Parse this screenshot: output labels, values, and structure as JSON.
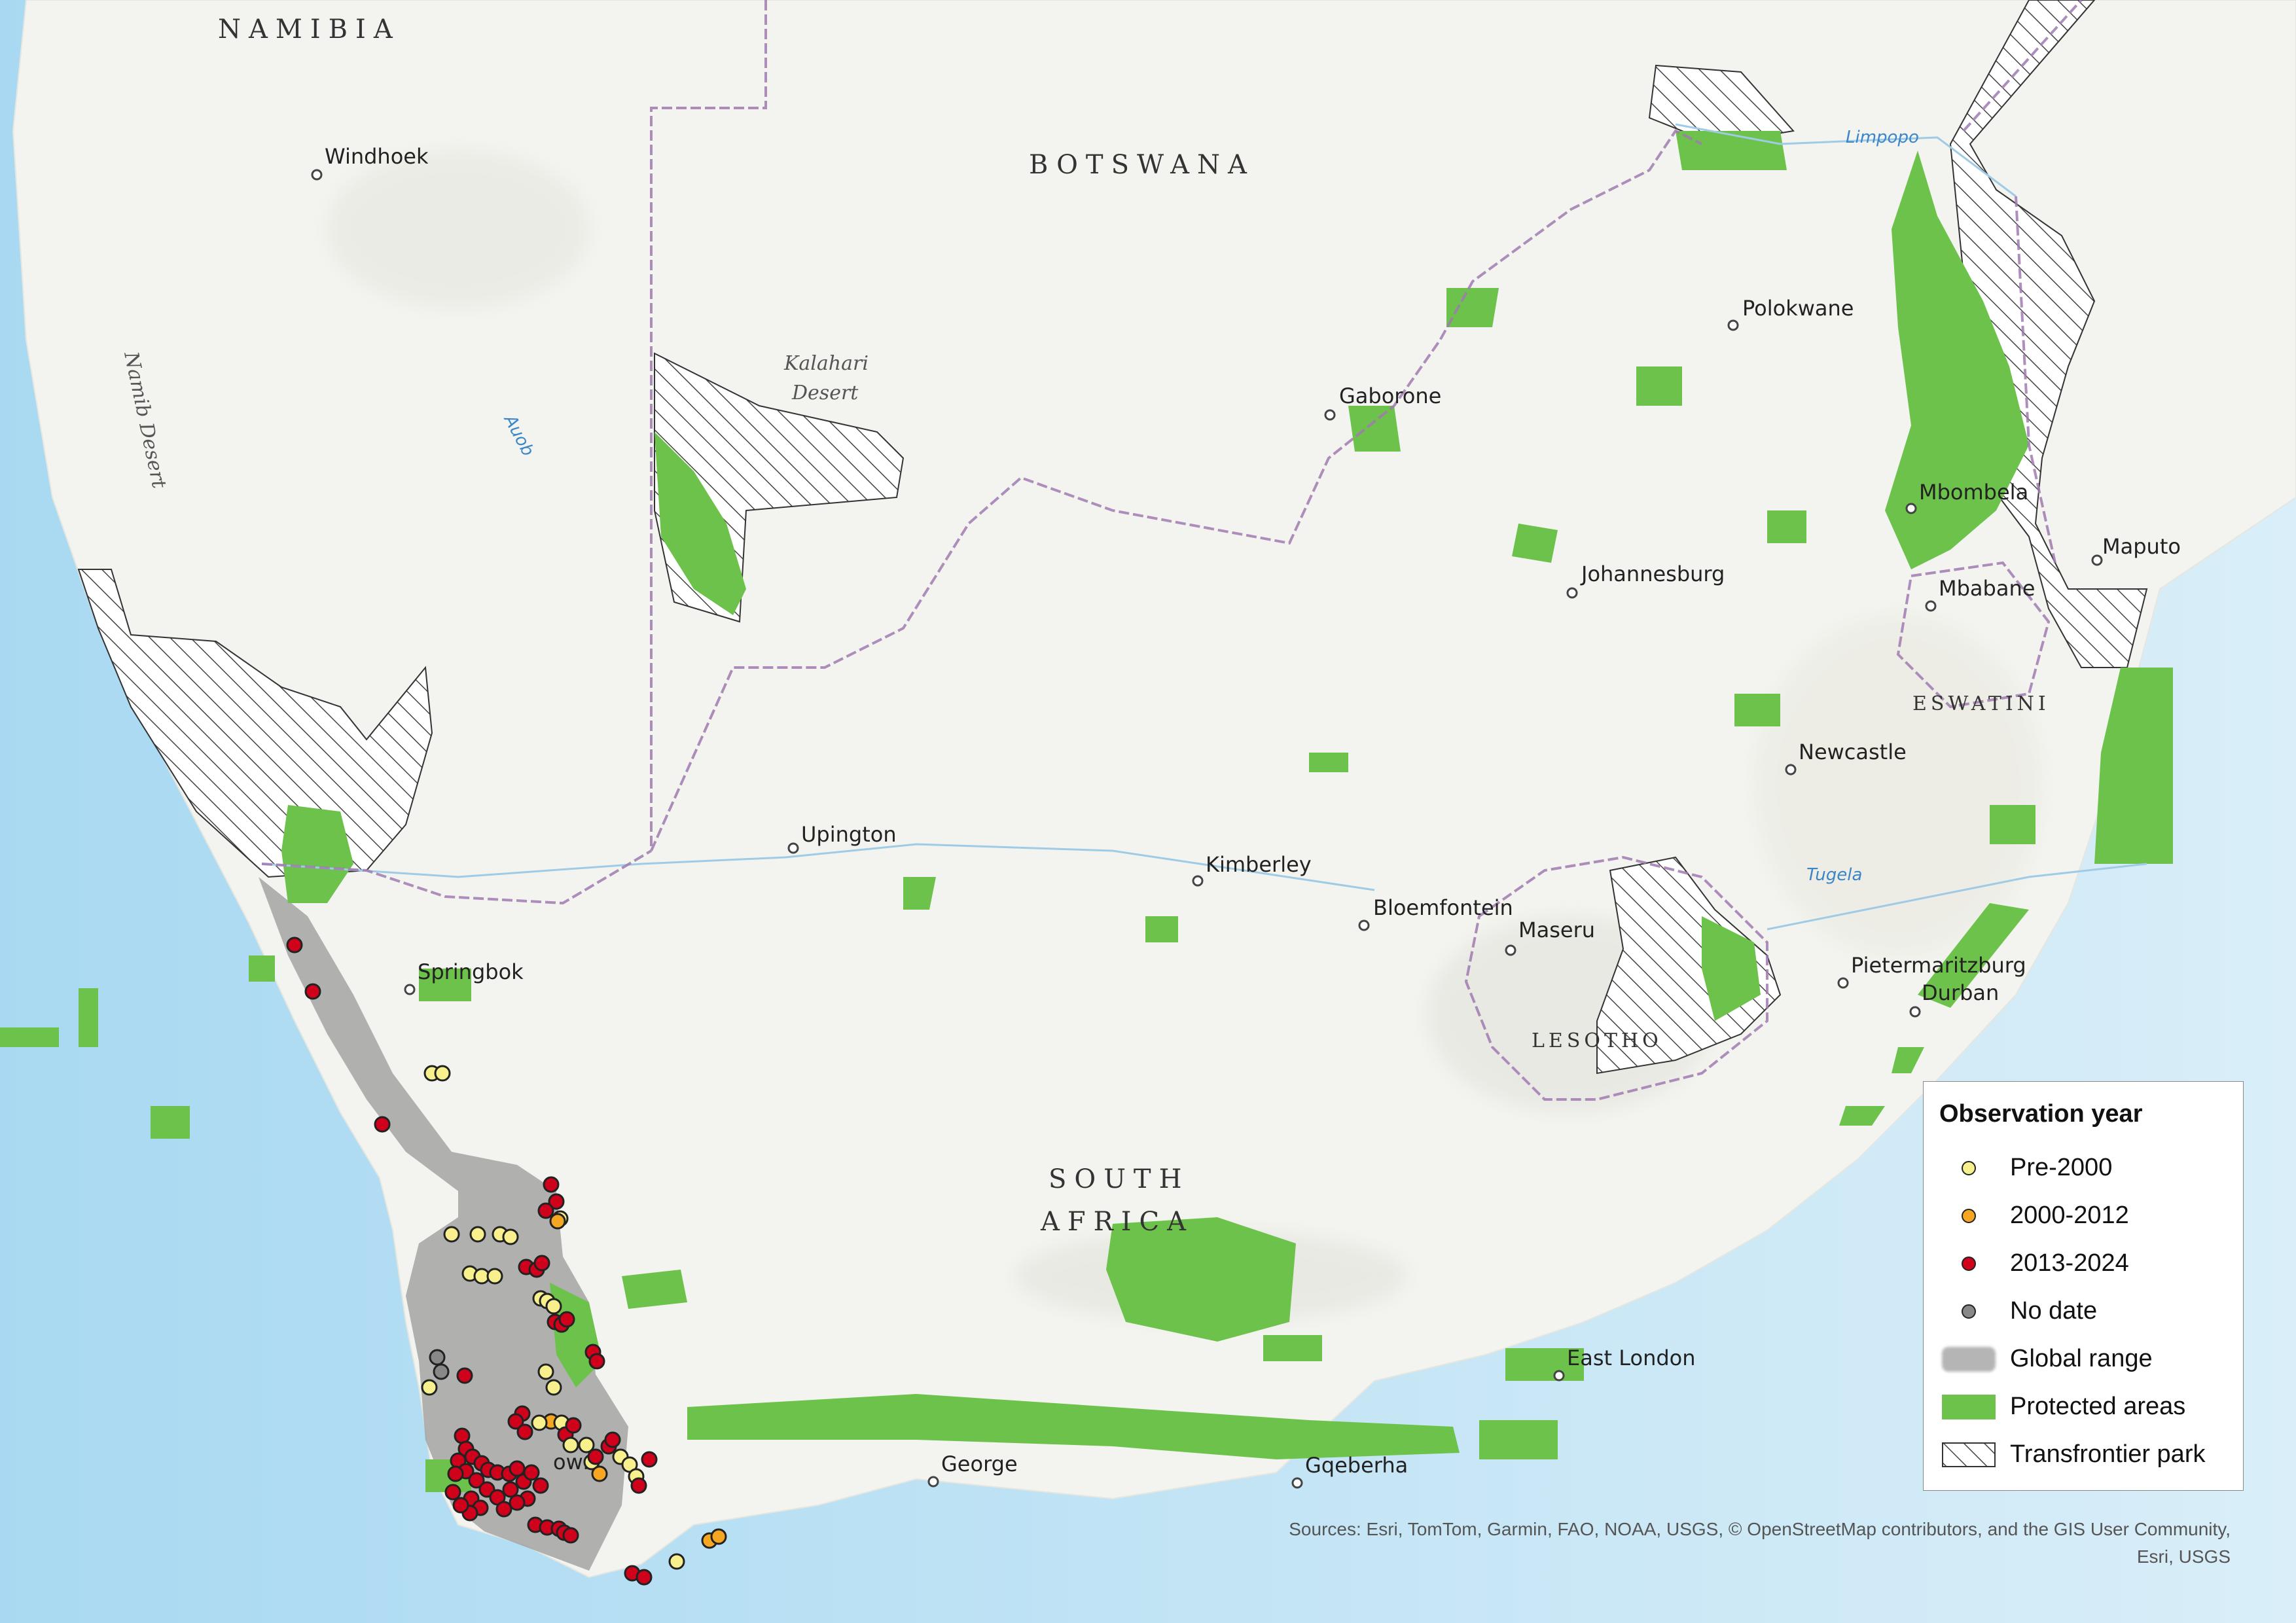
{
  "countries": [
    "NAMIBIA",
    "BOTSWANA",
    "SOUTH",
    "AFRICA",
    "LESOTHO",
    "ESWATINI"
  ],
  "cities": {
    "windhoek": "Windhoek",
    "gaborone": "Gaborone",
    "polokwane": "Polokwane",
    "mbombela": "Mbombela",
    "maputo": "Maputo",
    "mbabane": "Mbabane",
    "johannesburg": "Johannesburg",
    "newcastle": "Newcastle",
    "upington": "Upington",
    "kimberley": "Kimberley",
    "bloemfontein": "Bloemfontein",
    "maseru": "Maseru",
    "springbok": "Springbok",
    "pietermaritzburg": "Pietermaritzburg",
    "durban": "Durban",
    "east_london": "East London",
    "george": "George",
    "gqeberha": "Gqeberha",
    "cape_town_fragment": "own"
  },
  "features": {
    "kalahari_1": "Kalahari",
    "kalahari_2": "Desert",
    "namib": "Namib Desert",
    "auob": "Auob",
    "limpopo": "Limpopo",
    "tugela": "Tugela"
  },
  "legend": {
    "title": "Observation year",
    "items": [
      {
        "label": "Pre-2000",
        "color": "#f7f08c"
      },
      {
        "label": "2000-2012",
        "color": "#f5a623"
      },
      {
        "label": "2013-2024",
        "color": "#d0021b"
      },
      {
        "label": "No date",
        "color": "#888888"
      },
      {
        "label": "Global range",
        "color": "#b5b5b5"
      },
      {
        "label": "Protected areas",
        "color": "#6cc24a"
      },
      {
        "label": "Transfrontier park",
        "color": "hatch"
      }
    ]
  },
  "sources": {
    "line1": "Sources: Esri, TomTom, Garmin, FAO, NOAA, USGS, © OpenStreetMap contributors, and the GIS User Community,",
    "line2": "Esri, USGS"
  },
  "colors": {
    "ocean": "#cfe9f6",
    "land": "#f3f4ef",
    "protected": "#6cc24a",
    "range": "#9e9e9e",
    "border": "#a07ab0"
  }
}
